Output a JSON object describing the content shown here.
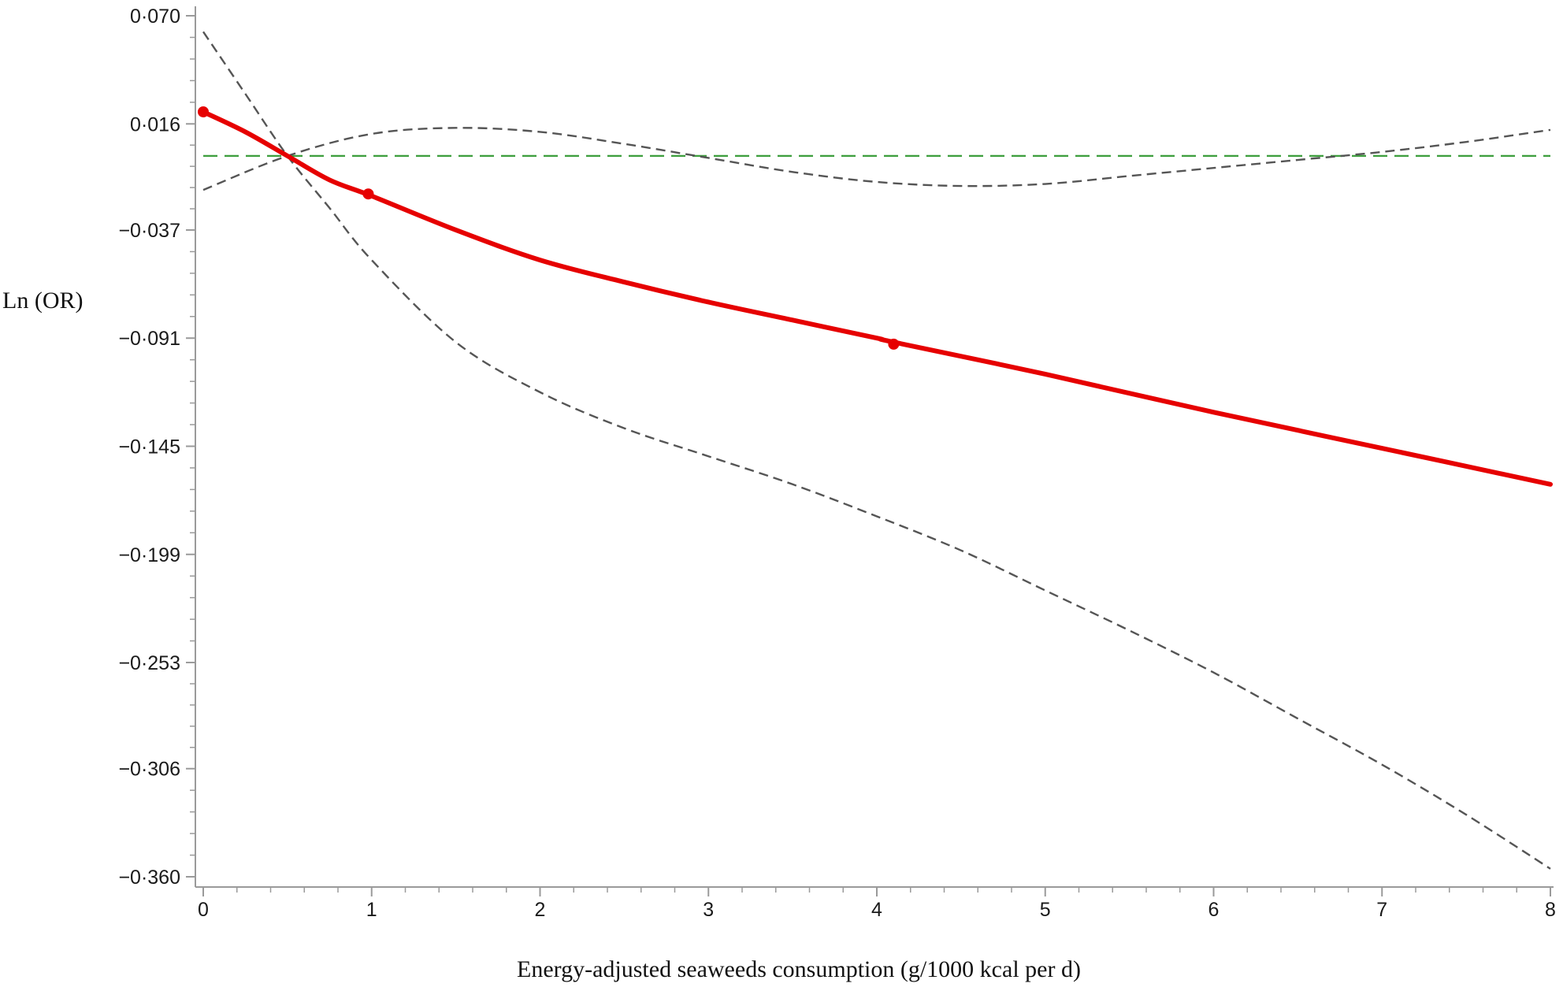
{
  "chart_data": {
    "type": "line",
    "title": "",
    "xlabel": "Energy-adjusted seaweeds consumption (g/1000 kcal per d)",
    "ylabel": "Ln (OR)",
    "xlim": [
      0,
      8
    ],
    "ylim": [
      -0.36,
      0.07
    ],
    "x_ticks": [
      0,
      1,
      2,
      3,
      4,
      5,
      6,
      7,
      8
    ],
    "x_tick_labels": [
      "0",
      "1",
      "2",
      "3",
      "4",
      "5",
      "6",
      "7",
      "8"
    ],
    "y_ticks": [
      0.07,
      0.016,
      -0.037,
      -0.091,
      -0.145,
      -0.199,
      -0.253,
      -0.306,
      -0.36
    ],
    "y_tick_labels": [
      "0·070",
      "0·016",
      "−0·037",
      "−0·091",
      "−0·145",
      "−0·199",
      "−0·253",
      "−0·306",
      "−0·360"
    ],
    "grid": false,
    "legend": "none",
    "series": [
      {
        "style": "solid",
        "color": "#e60000",
        "x": [
          0,
          0.25,
          0.5,
          0.75,
          1.0,
          1.5,
          2.0,
          2.5,
          3.0,
          3.5,
          4.0,
          4.1,
          5.0,
          6.0,
          7.0,
          8.0
        ],
        "y": [
          0.022,
          0.012,
          0.0,
          -0.012,
          -0.02,
          -0.037,
          -0.052,
          -0.063,
          -0.073,
          -0.082,
          -0.091,
          -0.093,
          -0.109,
          -0.128,
          -0.146,
          -0.164
        ],
        "markers_x": [
          0,
          0.98,
          4.1
        ],
        "markers_y": [
          0.022,
          -0.019,
          -0.094
        ]
      },
      {
        "style": "dashed",
        "color": "#555555",
        "x": [
          0,
          0.5,
          1.0,
          1.5,
          2.0,
          2.5,
          3.0,
          3.5,
          4.0,
          4.5,
          5.0,
          5.5,
          6.0,
          6.5,
          7.0,
          7.5,
          8.0
        ],
        "y": [
          -0.017,
          0.0,
          0.011,
          0.014,
          0.012,
          0.006,
          -0.001,
          -0.008,
          -0.013,
          -0.015,
          -0.014,
          -0.01,
          -0.006,
          -0.002,
          0.002,
          0.007,
          0.013
        ],
        "name": ""
      },
      {
        "style": "dashed",
        "color": "#555555",
        "x": [
          0,
          0.25,
          0.5,
          0.75,
          1.0,
          1.5,
          2.0,
          2.5,
          3.0,
          3.5,
          4.0,
          4.5,
          5.0,
          5.5,
          6.0,
          6.5,
          7.0,
          7.5,
          8.0
        ],
        "y": [
          0.062,
          0.031,
          0.0,
          -0.026,
          -0.052,
          -0.093,
          -0.118,
          -0.136,
          -0.15,
          -0.164,
          -0.18,
          -0.197,
          -0.217,
          -0.237,
          -0.258,
          -0.281,
          -0.304,
          -0.329,
          -0.356
        ],
        "name": ""
      },
      {
        "style": "dashed",
        "color": "#3f9f3f",
        "x": [
          0,
          8
        ],
        "y": [
          0,
          0
        ],
        "name": ""
      }
    ]
  }
}
